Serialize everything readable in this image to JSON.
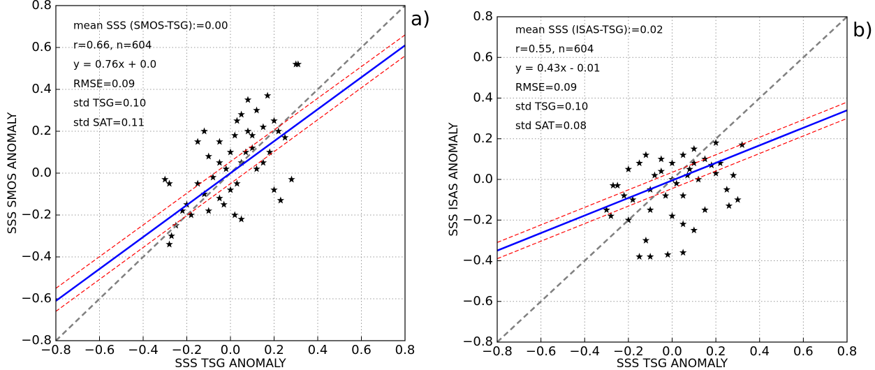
{
  "chart_data": [
    {
      "type": "scatter",
      "xlabel": "SSS TSG ANOMALY",
      "ylabel": "SSS SMOS ANOMALY",
      "panel_label": "a)",
      "annotations": [
        {
          "text": "mean SSS (SMOS-TSG):=0.00",
          "color": "#000000"
        },
        {
          "text": "r=0.66, n=604",
          "color": "#000000"
        },
        {
          "text": "y = 0.76x + 0.0",
          "color": "#0000ff"
        },
        {
          "text": "RMSE=0.09",
          "color": "#000000"
        },
        {
          "text": "std TSG=0.10",
          "color": "#000000"
        },
        {
          "text": "std SAT=0.11",
          "color": "#000000"
        }
      ],
      "xlim": [
        -0.8,
        0.8
      ],
      "ylim": [
        -0.8,
        0.8
      ],
      "xticks": [
        {
          "value": -0.8,
          "label": "−0.8"
        },
        {
          "value": -0.6,
          "label": "−0.6"
        },
        {
          "value": -0.4,
          "label": "−0.4"
        },
        {
          "value": -0.2,
          "label": "−0.2"
        },
        {
          "value": 0,
          "label": "0.0"
        },
        0.2,
        0.4,
        0.6,
        0.8
      ],
      "yticks": [
        {
          "value": -0.8,
          "label": "−0.8"
        },
        {
          "value": -0.6,
          "label": "−0.6"
        },
        {
          "value": -0.4,
          "label": "−0.4"
        },
        {
          "value": -0.2,
          "label": "−0.2"
        },
        {
          "value": 0,
          "label": "0.0"
        },
        0.2,
        0.4,
        0.6,
        0.8
      ],
      "grid": true,
      "marker_color": "#000000",
      "x": [
        0.3,
        0.31,
        0.17,
        0.12,
        0.05,
        0.2,
        0.15,
        0.08,
        0.02,
        -0.05,
        0.1,
        0.18,
        0.25,
        0.0,
        -0.1,
        0.05,
        -0.02,
        0.12,
        -0.08,
        0.03,
        -0.15,
        -0.12,
        -0.05,
        -0.2,
        -0.18,
        -0.1,
        0.02,
        0.05,
        -0.25,
        -0.27,
        -0.28,
        -0.3,
        -0.28,
        0.23,
        0.28,
        0.2,
        -0.15,
        -0.12,
        0.08,
        0.15,
        0.0,
        -0.05,
        0.07,
        0.1,
        -0.03,
        -0.22,
        0.22,
        0.03
      ],
      "y": [
        0.52,
        0.52,
        0.37,
        0.3,
        0.28,
        0.25,
        0.22,
        0.2,
        0.18,
        0.15,
        0.12,
        0.1,
        0.17,
        0.1,
        0.08,
        0.05,
        0.02,
        0.02,
        -0.02,
        -0.05,
        -0.05,
        -0.1,
        -0.12,
        -0.15,
        -0.2,
        -0.18,
        -0.2,
        -0.22,
        -0.25,
        -0.3,
        -0.34,
        -0.03,
        -0.05,
        -0.13,
        -0.03,
        -0.08,
        0.15,
        0.2,
        0.35,
        0.05,
        -0.08,
        0.05,
        0.1,
        0.18,
        -0.15,
        -0.18,
        0.2,
        0.25
      ],
      "lines": [
        {
          "x": [
            -0.8,
            0.8
          ],
          "y": [
            -0.8,
            0.8
          ],
          "color": "#808080",
          "style": "dashed"
        },
        {
          "x": [
            -0.8,
            0.8
          ],
          "y": [
            -0.55,
            0.66
          ],
          "color": "#ff0000",
          "style": "dashed"
        },
        {
          "x": [
            -0.8,
            0.8
          ],
          "y": [
            -0.66,
            0.56
          ],
          "color": "#ff0000",
          "style": "dashed"
        },
        {
          "x": [
            -0.8,
            0.8
          ],
          "y": [
            -0.61,
            0.61
          ],
          "color": "#0000ff",
          "style": "solid"
        }
      ]
    },
    {
      "type": "scatter",
      "xlabel": "SSS TSG ANOMALY",
      "ylabel": "SSS ISAS ANOMALY",
      "panel_label": "b)",
      "annotations": [
        {
          "text": "mean SSS (ISAS-TSG):=0.02",
          "color": "#000000"
        },
        {
          "text": "r=0.55, n=604",
          "color": "#000000"
        },
        {
          "text": "y = 0.43x - 0.01",
          "color": "#0000ff"
        },
        {
          "text": "RMSE=0.09",
          "color": "#000000"
        },
        {
          "text": "std TSG=0.10",
          "color": "#000000"
        },
        {
          "text": "std SAT=0.08",
          "color": "#000000"
        }
      ],
      "xlim": [
        -0.8,
        0.8
      ],
      "ylim": [
        -0.8,
        0.8
      ],
      "xticks": [
        {
          "value": -0.8,
          "label": "−0.8"
        },
        {
          "value": -0.6,
          "label": "−0.6"
        },
        {
          "value": -0.4,
          "label": "−0.4"
        },
        {
          "value": -0.2,
          "label": "−0.2"
        },
        {
          "value": 0,
          "label": "0.0"
        },
        0.2,
        0.4,
        0.6,
        0.8
      ],
      "yticks": [
        {
          "value": -0.8,
          "label": "−0.8"
        },
        {
          "value": -0.6,
          "label": "−0.6"
        },
        {
          "value": -0.4,
          "label": "−0.4"
        },
        {
          "value": -0.2,
          "label": "−0.2"
        },
        {
          "value": 0,
          "label": "0.0"
        },
        0.2,
        0.4,
        0.6,
        0.8
      ],
      "grid": true,
      "marker_color": "#000000",
      "x": [
        0.2,
        0.32,
        0.1,
        0.05,
        -0.05,
        -0.15,
        -0.2,
        0.0,
        0.15,
        0.08,
        -0.08,
        -0.25,
        -0.27,
        0.02,
        0.12,
        -0.1,
        0.05,
        0.2,
        0.25,
        0.26,
        0.3,
        -0.18,
        -0.3,
        -0.28,
        -0.2,
        -0.1,
        0.0,
        0.05,
        0.1,
        -0.15,
        -0.1,
        -0.02,
        0.05,
        -0.12,
        0.15,
        0.28,
        -0.05,
        0.1,
        -0.12,
        0.18,
        0.0,
        -0.03,
        0.07,
        -0.22,
        0.22
      ],
      "y": [
        0.18,
        0.17,
        0.15,
        0.12,
        0.1,
        0.08,
        0.05,
        0.08,
        0.1,
        0.05,
        0.02,
        -0.03,
        -0.03,
        -0.02,
        0.0,
        -0.05,
        -0.08,
        0.03,
        -0.05,
        -0.13,
        -0.1,
        -0.1,
        -0.15,
        -0.18,
        -0.2,
        -0.15,
        -0.18,
        -0.22,
        -0.25,
        -0.38,
        -0.38,
        -0.37,
        -0.36,
        -0.3,
        -0.15,
        0.02,
        0.04,
        0.08,
        0.12,
        0.07,
        0.0,
        -0.08,
        0.02,
        -0.08,
        0.08
      ],
      "lines": [
        {
          "x": [
            -0.8,
            0.8
          ],
          "y": [
            -0.8,
            0.8
          ],
          "color": "#808080",
          "style": "dashed"
        },
        {
          "x": [
            -0.8,
            0.8
          ],
          "y": [
            -0.31,
            0.38
          ],
          "color": "#ff0000",
          "style": "dashed"
        },
        {
          "x": [
            -0.8,
            0.8
          ],
          "y": [
            -0.39,
            0.3
          ],
          "color": "#ff0000",
          "style": "dashed"
        },
        {
          "x": [
            -0.8,
            0.8
          ],
          "y": [
            -0.35,
            0.34
          ],
          "color": "#0000ff",
          "style": "solid"
        }
      ]
    }
  ]
}
